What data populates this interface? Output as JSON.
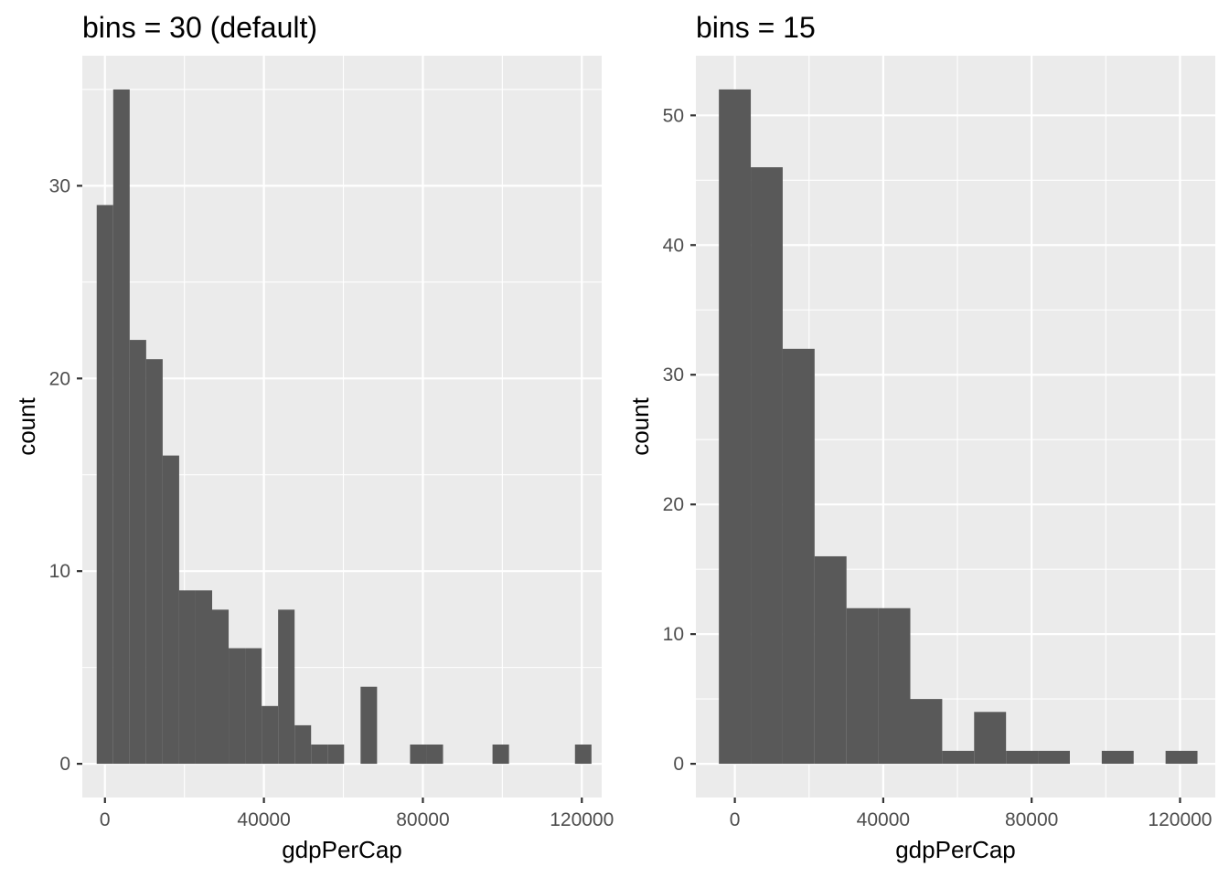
{
  "chart_data": [
    {
      "type": "bar",
      "title": "bins = 30 (default)",
      "xlabel": "gdpPerCap",
      "ylabel": "count",
      "xlim": [
        -5700,
        125000
      ],
      "ylim": [
        -1.75,
        36.75
      ],
      "xticks": [
        0,
        40000,
        80000,
        120000
      ],
      "xtick_labels": [
        "0",
        "40000",
        "80000",
        "120000"
      ],
      "yticks": [
        0,
        10,
        20,
        30
      ],
      "ytick_labels": [
        "0",
        "10",
        "20",
        "30"
      ],
      "bin_width": 4150,
      "bin_centers": [
        0,
        4150,
        8300,
        12450,
        16600,
        20750,
        24900,
        29050,
        33200,
        37350,
        41500,
        45650,
        49800,
        53950,
        58100,
        62250,
        66400,
        70550,
        74700,
        78850,
        83000,
        87150,
        91300,
        95450,
        99600,
        103750,
        107900,
        112050,
        116200,
        120350
      ],
      "values": [
        29,
        35,
        22,
        21,
        16,
        9,
        9,
        8,
        6,
        6,
        3,
        8,
        2,
        1,
        1,
        0,
        4,
        0,
        0,
        1,
        1,
        0,
        0,
        0,
        1,
        0,
        0,
        0,
        0,
        1
      ],
      "grid": true
    },
    {
      "type": "bar",
      "title": "bins = 15",
      "xlabel": "gdpPerCap",
      "ylabel": "count",
      "xlim": [
        -10500,
        129500
      ],
      "ylim": [
        -2.6,
        54.6
      ],
      "xticks": [
        0,
        40000,
        80000,
        120000
      ],
      "xtick_labels": [
        "0",
        "40000",
        "80000",
        "120000"
      ],
      "yticks": [
        0,
        10,
        20,
        30,
        40,
        50
      ],
      "ytick_labels": [
        "0",
        "10",
        "20",
        "30",
        "40",
        "50"
      ],
      "bin_width": 8600,
      "bin_centers": [
        0,
        8600,
        17200,
        25800,
        34400,
        43000,
        51600,
        60200,
        68800,
        77400,
        86000,
        94600,
        103200,
        111800,
        120400
      ],
      "values": [
        52,
        46,
        32,
        16,
        12,
        12,
        5,
        1,
        4,
        1,
        1,
        0,
        1,
        0,
        1
      ],
      "grid": true
    }
  ],
  "colors": {
    "panel_background": "#ebebeb",
    "bar_fill": "#595959",
    "grid": "#ffffff",
    "tick_label": "#4d4d4d"
  }
}
